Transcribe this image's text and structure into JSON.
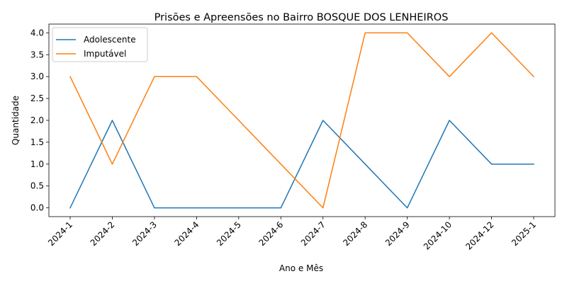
{
  "chart_data": {
    "type": "line",
    "title": "Prisões e Apreensões no Bairro BOSQUE DOS LENHEIROS",
    "xlabel": "Ano e Mês",
    "ylabel": "Quantidade",
    "categories": [
      "2024-1",
      "2024-2",
      "2024-3",
      "2024-4",
      "2024-5",
      "2024-6",
      "2024-7",
      "2024-8",
      "2024-9",
      "2024-10",
      "2024-12",
      "2025-1"
    ],
    "ylim": [
      -0.2,
      4.2
    ],
    "yticks": [
      "0.0",
      "0.5",
      "1.0",
      "1.5",
      "2.0",
      "2.5",
      "3.0",
      "3.5",
      "4.0"
    ],
    "grid": false,
    "legend_position": "top-left",
    "series": [
      {
        "name": "Adolescente",
        "color": "#1f77b4",
        "values": [
          0,
          2,
          0,
          0,
          0,
          0,
          2,
          1,
          0,
          2,
          1,
          1
        ]
      },
      {
        "name": "Imputável",
        "color": "#ff7f0e",
        "values": [
          3,
          1,
          3,
          3,
          2,
          1,
          0,
          4,
          4,
          3,
          4,
          3
        ]
      }
    ]
  }
}
